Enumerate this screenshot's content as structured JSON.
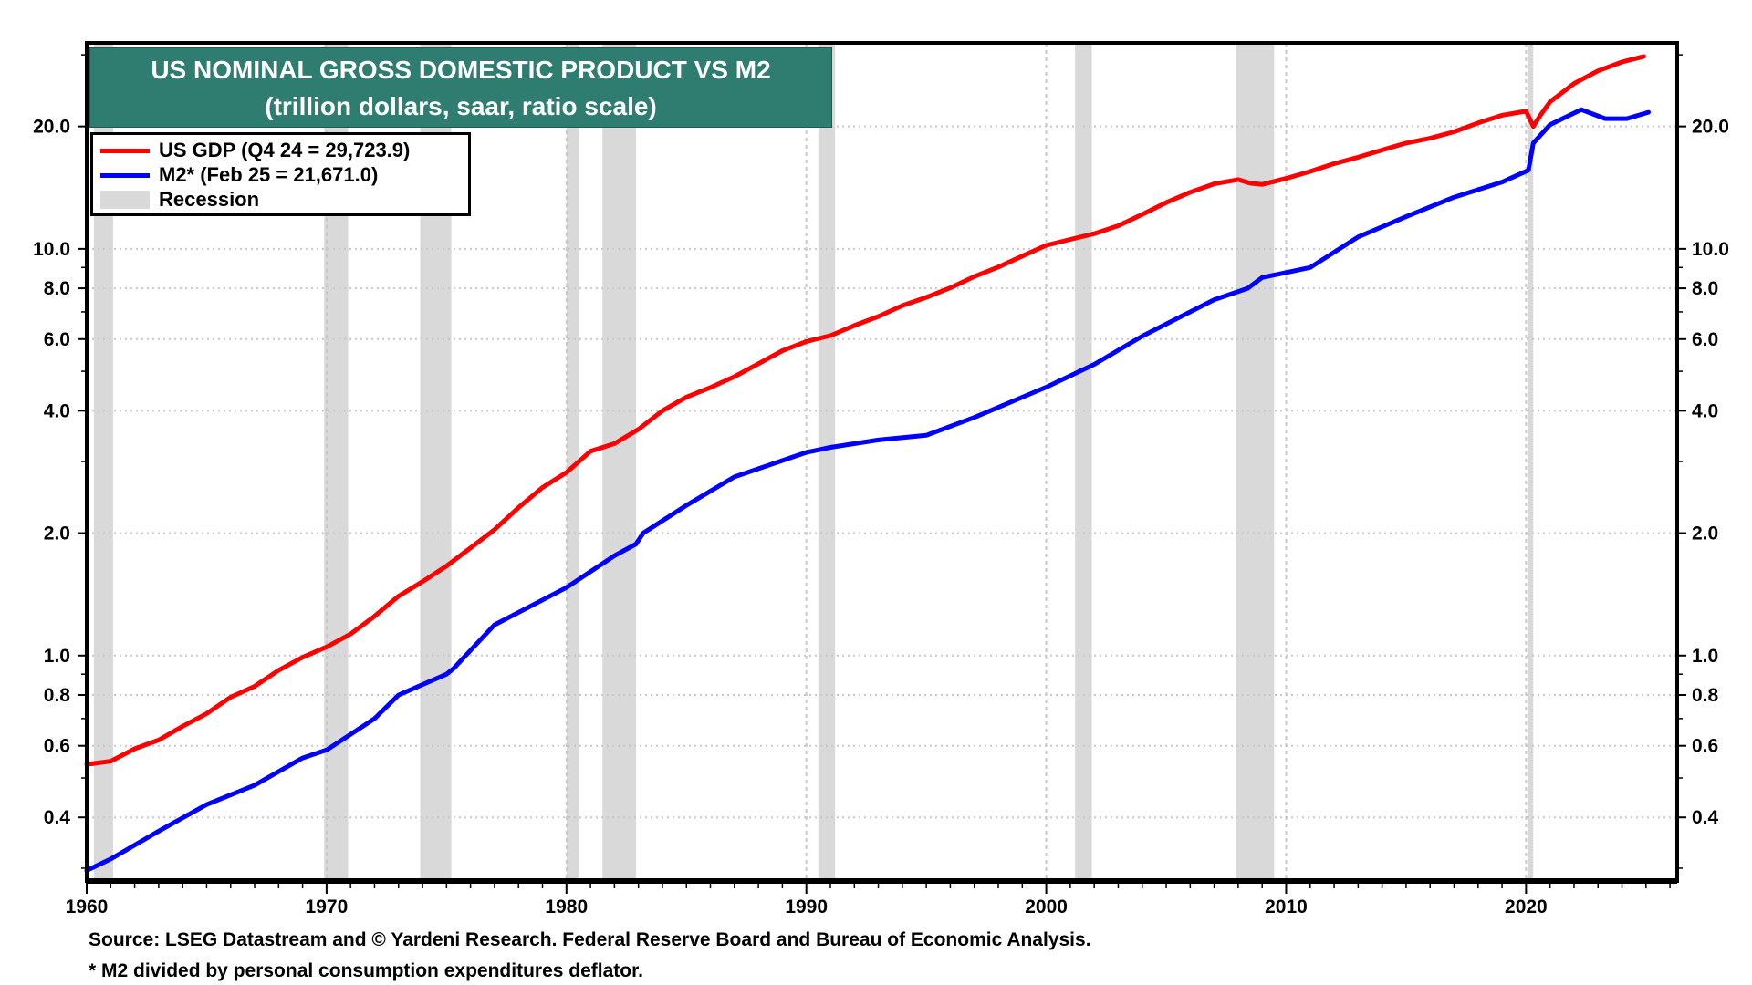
{
  "chart_data": {
    "type": "line",
    "title": "US NOMINAL GROSS DOMESTIC PRODUCT VS M2",
    "subtitle": "(trillion dollars, saar, ratio scale)",
    "y_scale": "log",
    "ylim": [
      0.279,
      32.1
    ],
    "xlim": [
      1960,
      2026.3
    ],
    "y_ticks": [
      "0.4",
      "0.6",
      "0.8",
      "1.0",
      "2.0",
      "4.0",
      "6.0",
      "8.0",
      "10.0",
      "20.0"
    ],
    "y_tick_values": [
      0.4,
      0.6,
      0.8,
      1,
      2,
      4,
      6,
      8,
      10,
      20
    ],
    "x_ticks": [
      "1960",
      "1970",
      "1980",
      "1990",
      "2000",
      "2010",
      "2020"
    ],
    "x_tick_values": [
      1960,
      1970,
      1980,
      1990,
      2000,
      2010,
      2020
    ],
    "grid": true,
    "legend_placement": "top-left",
    "series": [
      {
        "name": "US GDP (Q4 24 = 29,723.9)",
        "color": "#ff0000",
        "x": [
          1960,
          1961,
          1962,
          1963,
          1964,
          1965,
          1966,
          1967,
          1968,
          1969,
          1970,
          1971,
          1972,
          1973,
          1974,
          1975,
          1976,
          1977,
          1978,
          1979,
          1980,
          1981,
          1982,
          1983,
          1984,
          1985,
          1986,
          1987,
          1988,
          1989,
          1990,
          1991,
          1992,
          1993,
          1994,
          1995,
          1996,
          1997,
          1998,
          1999,
          2000,
          2001,
          2002,
          2003,
          2004,
          2005,
          2006,
          2007,
          2008,
          2008.5,
          2009,
          2010,
          2011,
          2012,
          2013,
          2014,
          2015,
          2016,
          2017,
          2018,
          2019,
          2020,
          2020.3,
          2020.6,
          2021,
          2022,
          2023,
          2024,
          2024.9
        ],
        "y": [
          0.54,
          0.55,
          0.59,
          0.62,
          0.67,
          0.72,
          0.79,
          0.84,
          0.92,
          0.99,
          1.05,
          1.13,
          1.25,
          1.4,
          1.52,
          1.66,
          1.84,
          2.04,
          2.31,
          2.59,
          2.82,
          3.18,
          3.32,
          3.6,
          4.0,
          4.32,
          4.56,
          4.85,
          5.22,
          5.62,
          5.92,
          6.12,
          6.48,
          6.82,
          7.25,
          7.6,
          8.02,
          8.55,
          9.02,
          9.6,
          10.2,
          10.55,
          10.9,
          11.4,
          12.15,
          13.0,
          13.78,
          14.45,
          14.8,
          14.5,
          14.4,
          14.9,
          15.5,
          16.2,
          16.8,
          17.5,
          18.2,
          18.7,
          19.4,
          20.4,
          21.3,
          21.8,
          20.0,
          21.3,
          23.0,
          25.5,
          27.4,
          28.8,
          29.72
        ]
      },
      {
        "name": "M2* (Feb 25 = 21,671.0)",
        "color": "#0000ff",
        "x": [
          1960,
          1961,
          1963,
          1965,
          1967,
          1969,
          1970,
          1971,
          1972,
          1973,
          1975,
          1975.3,
          1977,
          1980,
          1982,
          1982.9,
          1983.2,
          1985,
          1987,
          1990,
          1991,
          1993,
          1995,
          1997,
          2000,
          2002,
          2004,
          2007,
          2008.4,
          2009,
          2011,
          2013,
          2015,
          2017,
          2019,
          2020.1,
          2020.3,
          2021,
          2022.3,
          2023.3,
          2024.2,
          2025.1
        ],
        "y": [
          0.296,
          0.316,
          0.37,
          0.43,
          0.48,
          0.56,
          0.586,
          0.64,
          0.7,
          0.8,
          0.9,
          0.93,
          1.19,
          1.47,
          1.76,
          1.88,
          2.0,
          2.34,
          2.75,
          3.16,
          3.25,
          3.39,
          3.48,
          3.85,
          4.57,
          5.2,
          6.1,
          7.5,
          8.0,
          8.5,
          9.0,
          10.7,
          12.0,
          13.4,
          14.6,
          15.6,
          18.2,
          20.2,
          22.0,
          20.9,
          20.9,
          21.67
        ]
      }
    ],
    "recession": {
      "name": "Recession",
      "color": "#d9d9d9",
      "periods": [
        [
          1960.3,
          1961.1
        ],
        [
          1969.9,
          1970.9
        ],
        [
          1973.9,
          1975.2
        ],
        [
          1980.0,
          1980.5
        ],
        [
          1981.5,
          1982.9
        ],
        [
          1990.5,
          1991.2
        ],
        [
          2001.2,
          2001.9
        ],
        [
          2007.9,
          2009.5
        ],
        [
          2020.1,
          2020.3
        ]
      ]
    }
  },
  "legend": {
    "gdp": "US GDP (Q4 24 = 29,723.9)",
    "m2": "M2* (Feb 25 = 21,671.0)",
    "recession": "Recession"
  },
  "footer": {
    "source": "Source: LSEG Datastream and © Yardeni Research. Federal Reserve Board and Bureau of Economic Analysis.",
    "note": "* M2 divided by personal consumption expenditures deflator."
  },
  "colors": {
    "title_bg": "#2e7d70",
    "gdp": "#ff0000",
    "m2": "#0000ff",
    "recession": "#d9d9d9"
  }
}
